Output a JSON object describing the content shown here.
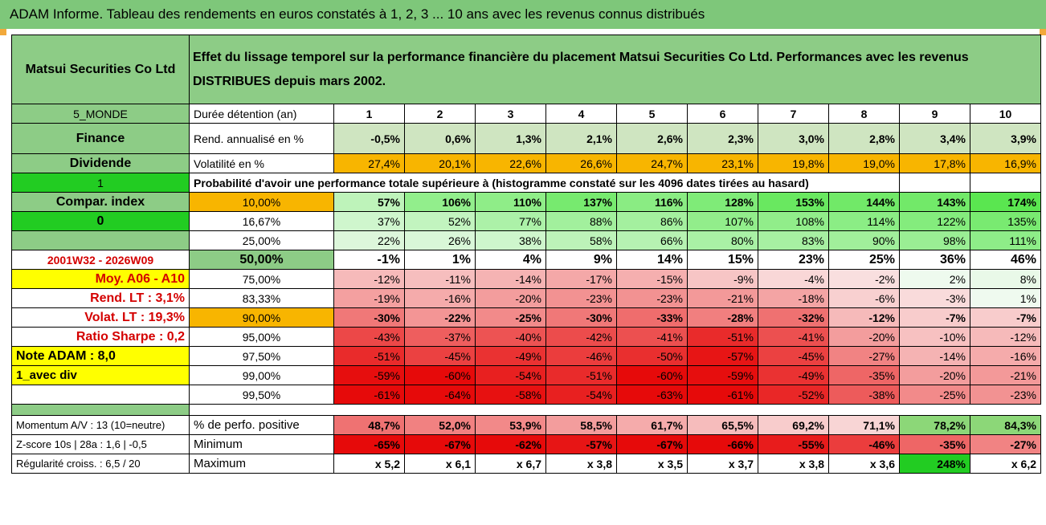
{
  "title": "ADAM Informe. Tableau des rendements en euros constatés à 1, 2, 3 ... 10 ans avec les revenus connus distribués",
  "colors": {
    "green": "#8dcc86",
    "orange": "#f8b500",
    "yellow": "#ffff00",
    "red_text": "#d40000"
  },
  "company": "Matsui Securities Co Ltd",
  "description": "Effet du lissage temporel sur la performance financière du placement Matsui Securities Co Ltd. Performances avec les revenus DISTRIBUES depuis mars 2002.",
  "rows_head": {
    "zone": "5_MONDE",
    "holding_label": "Durée détention (an)",
    "years": [
      "1",
      "2",
      "3",
      "4",
      "5",
      "6",
      "7",
      "8",
      "9",
      "10"
    ],
    "sector": "Finance",
    "rend_label": "Rend. annualisé en %",
    "rend": [
      "-0,5%",
      "0,6%",
      "1,3%",
      "2,1%",
      "2,6%",
      "2,3%",
      "3,0%",
      "2,8%",
      "3,4%",
      "3,9%"
    ],
    "dividend": "Dividende",
    "vol_label": "Volatilité en %",
    "vol": [
      "27,4%",
      "20,1%",
      "22,6%",
      "26,6%",
      "24,7%",
      "23,1%",
      "19,8%",
      "19,0%",
      "17,8%",
      "16,9%"
    ],
    "one": "1",
    "prob_label": "Probabilité d'avoir une performance totale supérieure à (histogramme constaté sur les 4096 dates tirées au hasard)"
  },
  "left_labels": [
    "Compar. index",
    "0",
    "",
    "2001W32 - 2026W09",
    "Moy. A06 - A10",
    "Rend. LT :    3,1%",
    "Volat. LT :   19,3%",
    "Ratio Sharpe :    0,2",
    "Note ADAM : 8,0",
    "1_avec div",
    ""
  ],
  "percentiles": [
    {
      "p": "10,00%",
      "v": [
        "57%",
        "106%",
        "110%",
        "137%",
        "116%",
        "128%",
        "153%",
        "144%",
        "143%",
        "174%"
      ]
    },
    {
      "p": "16,67%",
      "v": [
        "37%",
        "52%",
        "77%",
        "88%",
        "86%",
        "107%",
        "108%",
        "114%",
        "122%",
        "135%"
      ]
    },
    {
      "p": "25,00%",
      "v": [
        "22%",
        "26%",
        "38%",
        "58%",
        "66%",
        "80%",
        "83%",
        "90%",
        "98%",
        "111%"
      ]
    },
    {
      "p": "50,00%",
      "v": [
        "-1%",
        "1%",
        "4%",
        "9%",
        "14%",
        "15%",
        "23%",
        "25%",
        "36%",
        "46%"
      ]
    },
    {
      "p": "75,00%",
      "v": [
        "-12%",
        "-11%",
        "-14%",
        "-17%",
        "-15%",
        "-9%",
        "-4%",
        "-2%",
        "2%",
        "8%"
      ]
    },
    {
      "p": "83,33%",
      "v": [
        "-19%",
        "-16%",
        "-20%",
        "-23%",
        "-23%",
        "-21%",
        "-18%",
        "-6%",
        "-3%",
        "1%"
      ]
    },
    {
      "p": "90,00%",
      "v": [
        "-30%",
        "-22%",
        "-25%",
        "-30%",
        "-33%",
        "-28%",
        "-32%",
        "-12%",
        "-7%",
        "-7%"
      ]
    },
    {
      "p": "95,00%",
      "v": [
        "-43%",
        "-37%",
        "-40%",
        "-42%",
        "-41%",
        "-51%",
        "-41%",
        "-20%",
        "-10%",
        "-12%"
      ]
    },
    {
      "p": "97,50%",
      "v": [
        "-51%",
        "-45%",
        "-49%",
        "-46%",
        "-50%",
        "-57%",
        "-45%",
        "-27%",
        "-14%",
        "-16%"
      ]
    },
    {
      "p": "99,00%",
      "v": [
        "-59%",
        "-60%",
        "-54%",
        "-51%",
        "-60%",
        "-59%",
        "-49%",
        "-35%",
        "-20%",
        "-21%"
      ]
    },
    {
      "p": "99,50%",
      "v": [
        "-61%",
        "-64%",
        "-58%",
        "-54%",
        "-63%",
        "-61%",
        "-52%",
        "-38%",
        "-25%",
        "-23%"
      ]
    }
  ],
  "bottom": [
    {
      "left": "Momentum A/V : 13 (10=neutre)",
      "label": "% de perfo. positive",
      "v": [
        "48,7%",
        "52,0%",
        "53,9%",
        "58,5%",
        "61,7%",
        "65,5%",
        "69,2%",
        "71,1%",
        "78,2%",
        "84,3%"
      ]
    },
    {
      "left": "Z-score 10s | 28a : 1,6 | -0,5",
      "label": "Minimum",
      "v": [
        "-65%",
        "-67%",
        "-62%",
        "-57%",
        "-67%",
        "-66%",
        "-55%",
        "-46%",
        "-35%",
        "-27%"
      ]
    },
    {
      "left": "Régularité croiss. : 6,5 / 20",
      "label": "Maximum",
      "v": [
        "x 5,2",
        "x 6,1",
        "x 6,7",
        "x 3,8",
        "x 3,5",
        "x 3,7",
        "x 3,8",
        "x 3,6",
        "248%",
        "x 6,2"
      ]
    }
  ]
}
